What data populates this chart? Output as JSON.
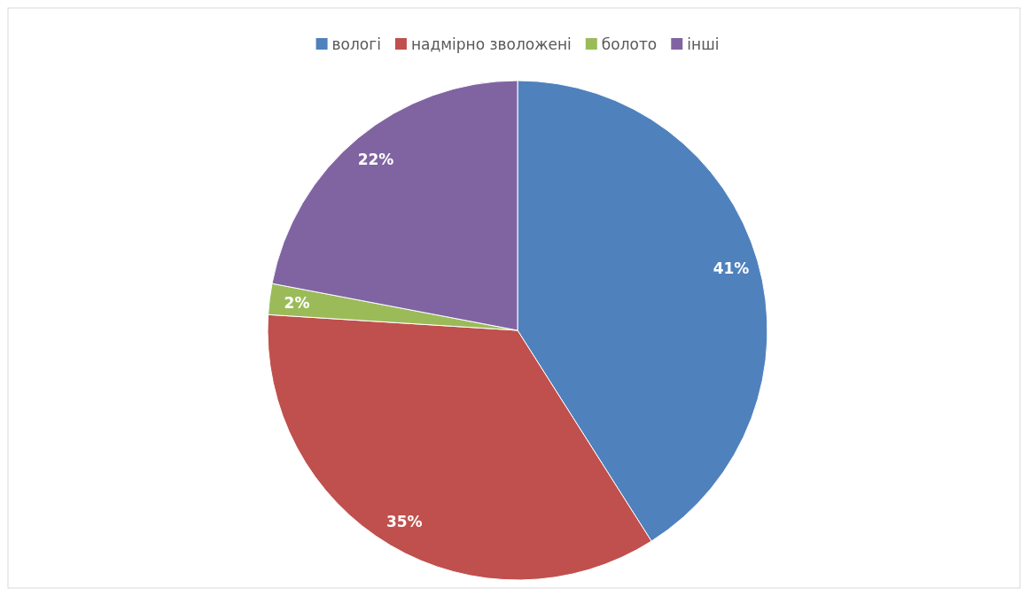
{
  "chart_data": {
    "type": "pie",
    "categories": [
      "вологі",
      "надмірно зволожені",
      "болото",
      "інші"
    ],
    "values": [
      41,
      35,
      2,
      22
    ],
    "colors": [
      "#4f81bd",
      "#c0504d",
      "#9bbb59",
      "#8064a2"
    ],
    "value_labels": [
      "41%",
      "35%",
      "2%",
      "22%"
    ],
    "legend": "top"
  }
}
